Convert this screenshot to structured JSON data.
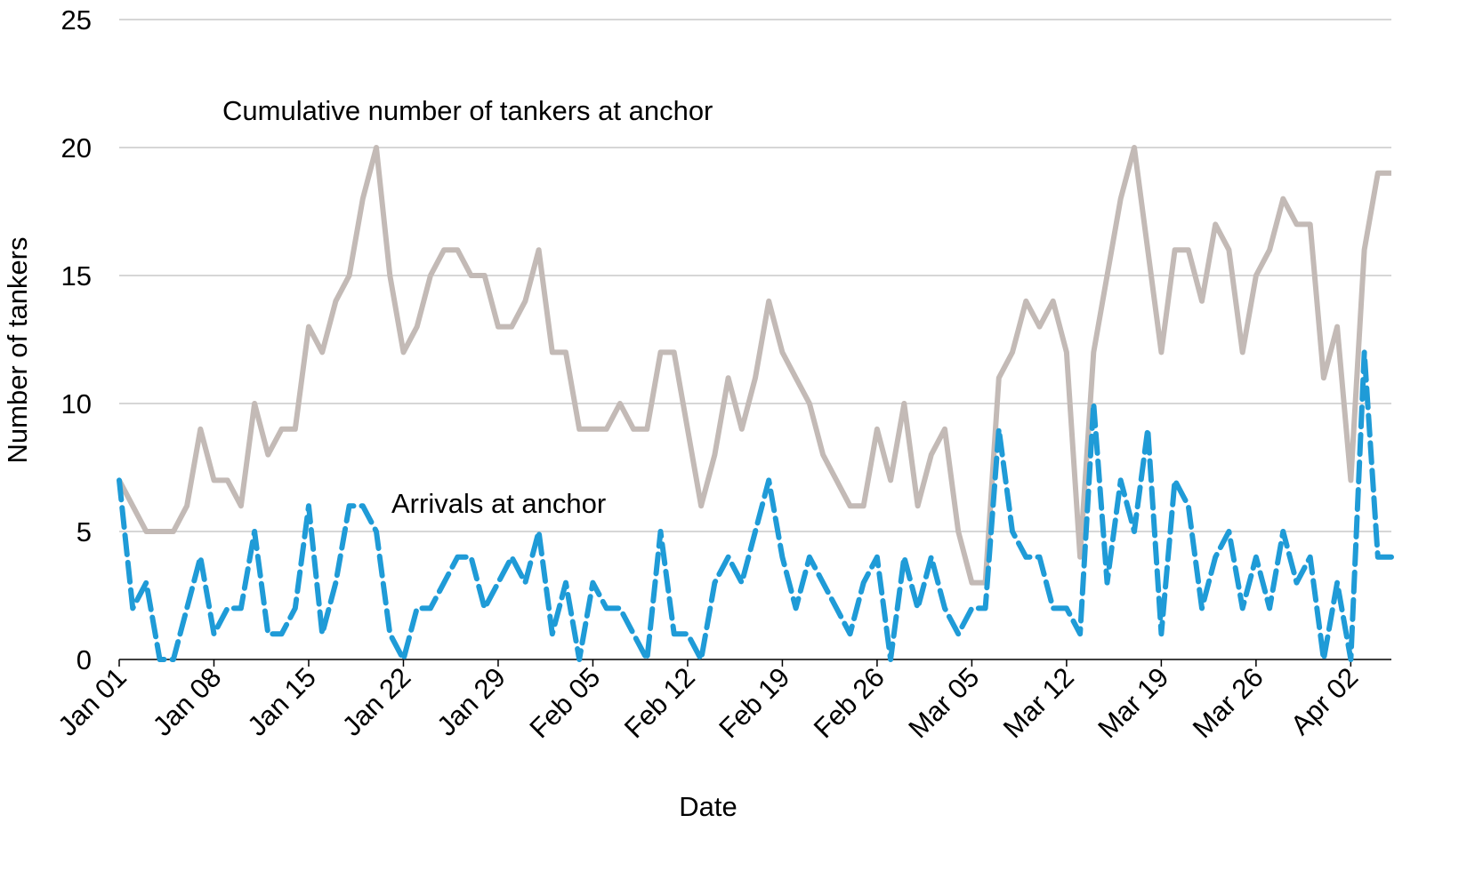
{
  "chart_data": {
    "type": "line",
    "title": "",
    "xlabel": "Date",
    "ylabel": "Number of tankers",
    "ylim": [
      0,
      25
    ],
    "yticks": [
      0,
      5,
      10,
      15,
      20,
      25
    ],
    "grid": true,
    "x_start": "Jan 01",
    "n_days": 95,
    "x_tick_labels": [
      "Jan 01",
      "Jan 08",
      "Jan 15",
      "Jan 22",
      "Jan 29",
      "Feb 05",
      "Feb 12",
      "Feb 19",
      "Feb 26",
      "Mar 05",
      "Mar 12",
      "Mar 19",
      "Mar 26",
      "Apr 02"
    ],
    "x_tick_every_days": 7,
    "series": [
      {
        "name": "Cumulative number of tankers at anchor",
        "color": "#c3bab6",
        "style": "solid",
        "values": [
          7,
          6,
          5,
          5,
          5,
          6,
          9,
          7,
          7,
          6,
          10,
          8,
          9,
          9,
          13,
          12,
          14,
          15,
          18,
          20,
          15,
          12,
          13,
          15,
          16,
          16,
          15,
          15,
          13,
          13,
          14,
          16,
          12,
          12,
          9,
          9,
          9,
          10,
          9,
          9,
          12,
          12,
          9,
          6,
          8,
          11,
          9,
          11,
          14,
          12,
          11,
          10,
          8,
          7,
          6,
          6,
          9,
          7,
          10,
          6,
          8,
          9,
          5,
          3,
          3,
          11,
          12,
          14,
          13,
          14,
          12,
          4,
          12,
          15,
          18,
          20,
          16,
          12,
          16,
          16,
          14,
          17,
          16,
          12,
          15,
          16,
          18,
          17,
          17,
          11,
          13,
          7,
          16,
          19,
          19
        ]
      },
      {
        "name": "Arrivals at anchor",
        "color": "#1f9bd7",
        "style": "dashed",
        "values": [
          7,
          2,
          3,
          0,
          0,
          2,
          4,
          1,
          2,
          2,
          5,
          1,
          1,
          2,
          6,
          1,
          3,
          6,
          6,
          5,
          1,
          0,
          2,
          2,
          3,
          4,
          4,
          2,
          3,
          4,
          3,
          5,
          1,
          3,
          0,
          3,
          2,
          2,
          1,
          0,
          5,
          1,
          1,
          0,
          3,
          4,
          3,
          5,
          7,
          4,
          2,
          4,
          3,
          2,
          1,
          3,
          4,
          0,
          4,
          2,
          4,
          2,
          1,
          2,
          2,
          9,
          5,
          4,
          4,
          2,
          2,
          1,
          10,
          3,
          7,
          5,
          9,
          1,
          7,
          6,
          2,
          4,
          5,
          2,
          4,
          2,
          5,
          3,
          4,
          0,
          3,
          0,
          12,
          4,
          4
        ]
      }
    ],
    "annotations": [
      {
        "text": "Cumulative number of tankers at anchor",
        "series": 0
      },
      {
        "text": "Arrivals at anchor",
        "series": 1
      }
    ]
  }
}
